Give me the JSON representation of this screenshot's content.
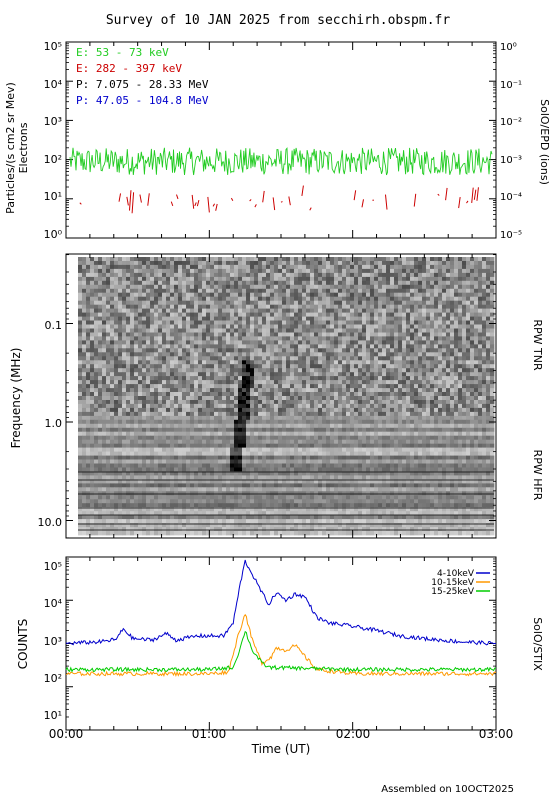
{
  "header": {
    "title": "Survey of 10 JAN 2025 from secchirh.obspm.fr"
  },
  "footer": {
    "assembled": "Assembled on 10OCT2025"
  },
  "colors": {
    "e_low": "#22cc22",
    "e_high": "#cc0000",
    "p_low": "#000000",
    "p_high": "#0000cc",
    "stix_1": "#0000cc",
    "stix_2": "#ff9900",
    "stix_3": "#00cc00"
  },
  "chart_data": [
    {
      "type": "line",
      "panel": "epd",
      "ylabel": "Particles/(s cm2 sr Mev)",
      "ylabel2": "Electrons",
      "right_label": "SolO/EPD (ions)",
      "yscale": "log",
      "ylim": [
        1,
        100000
      ],
      "yticks": [
        "10⁰",
        "10¹",
        "10²",
        "10³",
        "10⁴",
        "10⁵"
      ],
      "ylim_right": [
        1e-05,
        1
      ],
      "yticks_right": [
        "10⁻⁵",
        "10⁻⁴",
        "10⁻³",
        "10⁻²",
        "10⁻¹",
        "10⁰"
      ],
      "legend": [
        "E: 53 - 73 keV",
        "E: 282 - 397 keV",
        "P: 7.075 - 28.33 MeV",
        "P: 47.05 - 104.8 MeV"
      ],
      "series": [
        {
          "name": "E: 53 - 73 keV",
          "level": 90,
          "spread": 0.35
        },
        {
          "name": "E: 282 - 397 keV",
          "level": 6,
          "spread": 0.35
        }
      ]
    },
    {
      "type": "heatmap",
      "panel": "rpw",
      "ylabel": "Frequency (MHz)",
      "yscale": "log",
      "ylim": [
        0.004,
        16
      ],
      "yticks": [
        "0.1",
        "1.0",
        "10.0"
      ],
      "right_labels": [
        "RPW TNR",
        "RPW HFR"
      ],
      "features": [
        {
          "name": "type III burst",
          "start": "01:10",
          "end": "01:20"
        }
      ]
    },
    {
      "type": "line",
      "panel": "stix",
      "ylabel": "COUNTS",
      "right_label": "SolO/STIX",
      "yscale": "log",
      "ylim": [
        10,
        100000
      ],
      "yticks": [
        "10¹",
        "10²",
        "10³",
        "10⁴",
        "10⁵"
      ],
      "xlabel": "Time (UT)",
      "xlim": [
        "00:00",
        "03:00"
      ],
      "xticks": [
        "00:00",
        "01:00",
        "02:00",
        "03:00"
      ],
      "series": [
        {
          "name": "4-10keV",
          "points": [
            [
              "00:00",
              1000
            ],
            [
              "00:15",
              1100
            ],
            [
              "00:21",
              1250
            ],
            [
              "00:24",
              2200
            ],
            [
              "00:28",
              1300
            ],
            [
              "00:36",
              1200
            ],
            [
              "00:42",
              1700
            ],
            [
              "00:46",
              1200
            ],
            [
              "00:55",
              1500
            ],
            [
              "01:00",
              1500
            ],
            [
              "01:06",
              1500
            ],
            [
              "01:10",
              3000
            ],
            [
              "01:13",
              25000
            ],
            [
              "01:15",
              80000
            ],
            [
              "01:18",
              40000
            ],
            [
              "01:22",
              15000
            ],
            [
              "01:25",
              8000
            ],
            [
              "01:28",
              15000
            ],
            [
              "01:32",
              10000
            ],
            [
              "01:36",
              14000
            ],
            [
              "01:40",
              12000
            ],
            [
              "01:45",
              4000
            ],
            [
              "01:50",
              3000
            ],
            [
              "02:00",
              2500
            ],
            [
              "02:10",
              2000
            ],
            [
              "02:20",
              1500
            ],
            [
              "02:30",
              1300
            ],
            [
              "02:45",
              1100
            ],
            [
              "03:00",
              1000
            ]
          ]
        },
        {
          "name": "10-15keV",
          "points": [
            [
              "00:00",
              200
            ],
            [
              "00:30",
              200
            ],
            [
              "01:00",
              200
            ],
            [
              "01:08",
              220
            ],
            [
              "01:12",
              1500
            ],
            [
              "01:15",
              5000
            ],
            [
              "01:18",
              1200
            ],
            [
              "01:22",
              350
            ],
            [
              "01:26",
              500
            ],
            [
              "01:28",
              800
            ],
            [
              "01:32",
              700
            ],
            [
              "01:36",
              900
            ],
            [
              "01:40",
              500
            ],
            [
              "01:45",
              250
            ],
            [
              "02:00",
              200
            ],
            [
              "03:00",
              200
            ]
          ]
        },
        {
          "name": "15-25keV",
          "points": [
            [
              "00:00",
              250
            ],
            [
              "00:30",
              250
            ],
            [
              "01:00",
              250
            ],
            [
              "01:10",
              280
            ],
            [
              "01:13",
              800
            ],
            [
              "01:15",
              2000
            ],
            [
              "01:18",
              700
            ],
            [
              "01:22",
              350
            ],
            [
              "01:25",
              280
            ],
            [
              "02:00",
              250
            ],
            [
              "03:00",
              250
            ]
          ]
        }
      ]
    }
  ]
}
